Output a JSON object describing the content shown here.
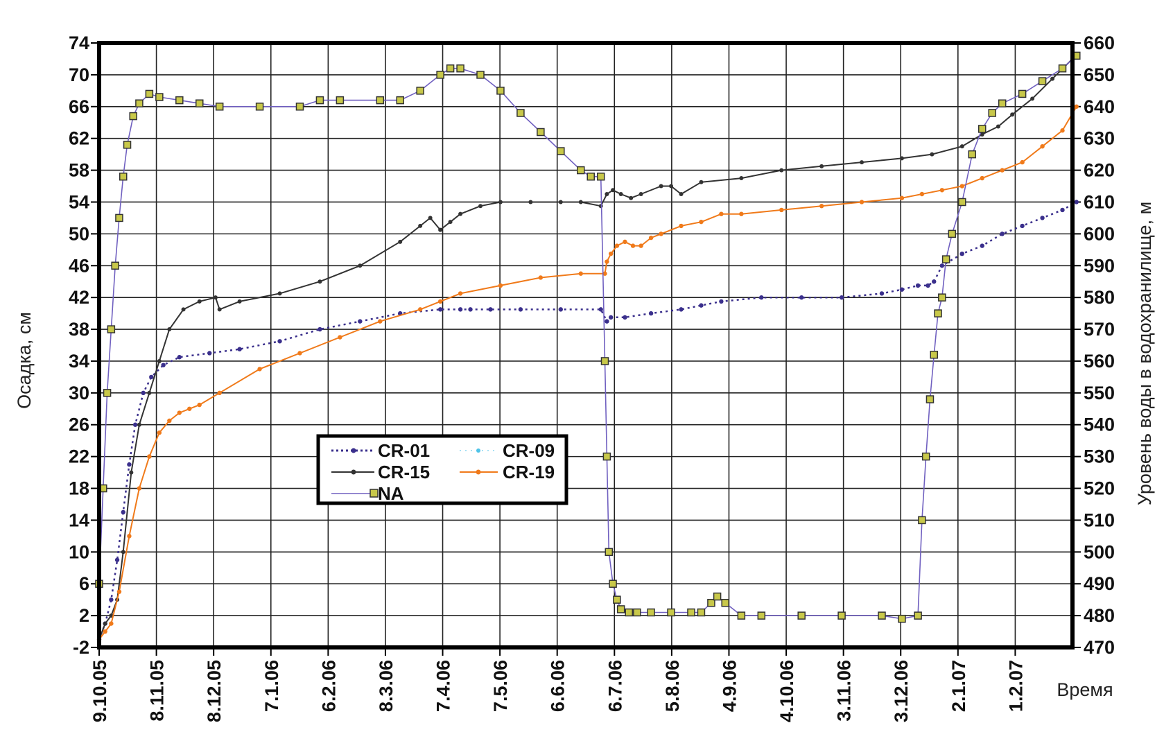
{
  "chart_data": {
    "type": "line",
    "xlabel": "Время",
    "ylabel_left": "Осадка, см",
    "ylabel_right": "Уровень воды в водохранилище, м",
    "ylim_left": [
      -2,
      74
    ],
    "ylim_right": [
      470,
      660
    ],
    "y_ticks_left": [
      -2,
      2,
      6,
      10,
      14,
      18,
      22,
      26,
      30,
      34,
      38,
      42,
      46,
      50,
      54,
      58,
      62,
      66,
      70,
      74
    ],
    "y_ticks_right": [
      470,
      480,
      490,
      500,
      510,
      520,
      530,
      540,
      550,
      560,
      570,
      580,
      590,
      600,
      610,
      620,
      630,
      640,
      650,
      660
    ],
    "x_tick_labels": [
      "9.10.05",
      "8.11.05",
      "8.12.05",
      "7.1.06",
      "6.2.06",
      "8.3.06",
      "7.4.06",
      "7.5.06",
      "6.6.06",
      "6.7.06",
      "5.8.06",
      "4.9.06",
      "4.10.06",
      "3.11.06",
      "3.12.06",
      "2.1.07",
      "1.2.07"
    ],
    "x_unit": "days from 9.10.05",
    "grid": true,
    "legend_position": "center-left",
    "colors": {
      "CR-01": "#3a2f8c",
      "CR-09": "#4fc3e8",
      "CR-15": "#333333",
      "CR-19": "#f07a1a",
      "NA": "#7060c0",
      "NA_marker_fill": "#c8c84a"
    },
    "series": [
      {
        "name": "CR-01",
        "axis": "left",
        "x": [
          0,
          3,
          6,
          9,
          12,
          15,
          18,
          22,
          26,
          32,
          40,
          55,
          70,
          90,
          110,
          130,
          150,
          170,
          180,
          185,
          195,
          210,
          230,
          250,
          253,
          255,
          262,
          275,
          290,
          300,
          310,
          330,
          350,
          370,
          390,
          400,
          408,
          413,
          416,
          420,
          430,
          440,
          450,
          460,
          470,
          480,
          487
        ],
        "y": [
          -1,
          1,
          4,
          9,
          15,
          21,
          26,
          30,
          32,
          33.5,
          34.5,
          35,
          35.5,
          36.5,
          38,
          39,
          40,
          40.5,
          40.5,
          40.5,
          40.5,
          40.5,
          40.5,
          40.5,
          39,
          39.5,
          39.5,
          40,
          40.5,
          41,
          41.5,
          42,
          42,
          42,
          42.5,
          43,
          43.5,
          43.5,
          44,
          46,
          47.5,
          48.5,
          50,
          51,
          52,
          53,
          54
        ]
      },
      {
        "name": "CR-09",
        "axis": "left",
        "x": [],
        "y": []
      },
      {
        "name": "CR-15",
        "axis": "left",
        "x": [
          0,
          3,
          6,
          9,
          12,
          16,
          20,
          25,
          30,
          35,
          42,
          50,
          58,
          60,
          70,
          90,
          110,
          130,
          150,
          160,
          165,
          170,
          175,
          180,
          190,
          200,
          215,
          230,
          240,
          250,
          253,
          256,
          260,
          265,
          270,
          280,
          285,
          290,
          300,
          320,
          340,
          360,
          380,
          400,
          415,
          430,
          440,
          448,
          455,
          465,
          475,
          487
        ],
        "y": [
          -1,
          1,
          2,
          4,
          10,
          20,
          26,
          30,
          34,
          38,
          40.5,
          41.5,
          42,
          40.5,
          41.5,
          42.5,
          44,
          46,
          49,
          51,
          52,
          50.5,
          51.5,
          52.5,
          53.5,
          54,
          54,
          54,
          54,
          53.5,
          55,
          55.5,
          55,
          54.5,
          55,
          56,
          56,
          55,
          56.5,
          57,
          58,
          58.5,
          59,
          59.5,
          60,
          61,
          62.5,
          63.5,
          65,
          67,
          69.5,
          72.5
        ]
      },
      {
        "name": "CR-19",
        "axis": "left",
        "x": [
          0,
          3,
          6,
          10,
          15,
          20,
          25,
          30,
          35,
          40,
          45,
          50,
          60,
          80,
          100,
          120,
          140,
          160,
          170,
          180,
          200,
          220,
          240,
          252,
          253,
          255,
          258,
          262,
          266,
          270,
          275,
          280,
          290,
          300,
          310,
          320,
          340,
          360,
          380,
          400,
          410,
          420,
          430,
          440,
          450,
          460,
          470,
          480,
          487
        ],
        "y": [
          -1,
          0,
          1,
          5,
          12,
          18,
          22,
          25,
          26.5,
          27.5,
          28,
          28.5,
          30,
          33,
          35,
          37,
          39,
          40.5,
          41.5,
          42.5,
          43.5,
          44.5,
          45,
          45,
          46.5,
          47.5,
          48.5,
          49,
          48.5,
          48.5,
          49.5,
          50,
          51,
          51.5,
          52.5,
          52.5,
          53,
          53.5,
          54,
          54.5,
          55,
          55.5,
          56,
          57,
          58,
          59,
          61,
          63,
          66
        ]
      },
      {
        "name": "NA",
        "axis": "right",
        "x": [
          0,
          2,
          4,
          6,
          8,
          10,
          12,
          14,
          17,
          20,
          25,
          30,
          40,
          50,
          60,
          80,
          100,
          110,
          120,
          140,
          150,
          160,
          170,
          175,
          180,
          190,
          200,
          210,
          220,
          230,
          240,
          245,
          250,
          252,
          253,
          254,
          256,
          258,
          260,
          264,
          268,
          275,
          285,
          295,
          300,
          305,
          308,
          312,
          320,
          330,
          350,
          370,
          390,
          400,
          408,
          410,
          412,
          414,
          416,
          418,
          420,
          422,
          425,
          430,
          435,
          440,
          445,
          450,
          460,
          470,
          480,
          487
        ],
        "y": [
          490,
          520,
          550,
          570,
          590,
          605,
          618,
          628,
          637,
          641,
          644,
          643,
          642,
          641,
          640,
          640,
          640,
          642,
          642,
          642,
          642,
          645,
          650,
          652,
          652,
          650,
          645,
          638,
          632,
          626,
          620,
          618,
          618,
          560,
          530,
          500,
          490,
          485,
          482,
          481,
          481,
          481,
          481,
          481,
          481,
          484,
          486,
          484,
          480,
          480,
          480,
          480,
          480,
          479,
          480,
          510,
          530,
          548,
          562,
          575,
          580,
          592,
          600,
          610,
          625,
          633,
          638,
          641,
          644,
          648,
          652,
          656
        ]
      }
    ]
  }
}
